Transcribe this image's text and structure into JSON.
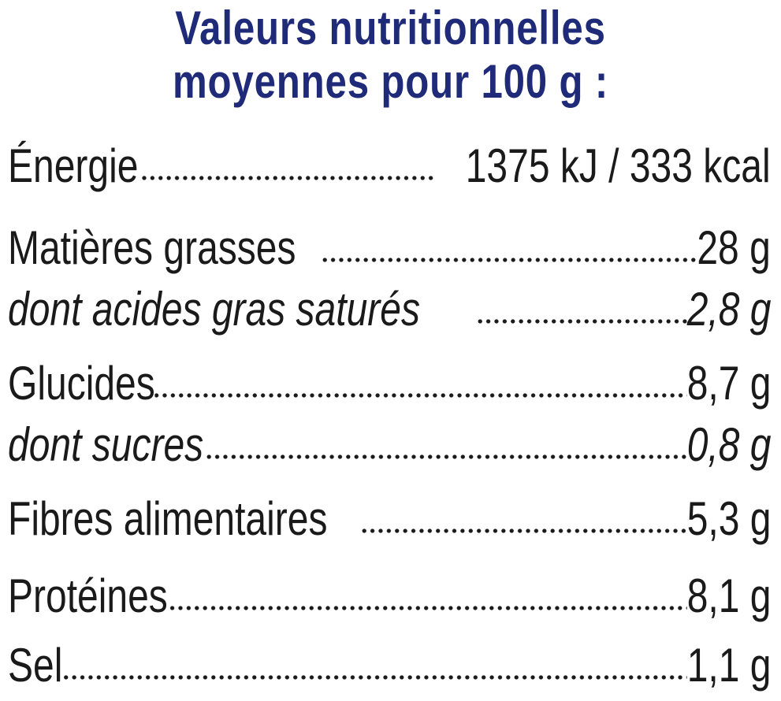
{
  "title": {
    "line1": "Valeurs nutritionnelles",
    "line2": "moyennes pour 100 g :"
  },
  "rows": [
    {
      "label": "Énergie",
      "value": "1375 kJ / 333 kcal"
    },
    {
      "label": "Matières grasses",
      "value": "28 g"
    },
    {
      "label": "dont acides gras saturés",
      "value": "2,8 g"
    },
    {
      "label": "Glucides",
      "value": "8,7 g"
    },
    {
      "label": "dont sucres",
      "value": "0,8 g"
    },
    {
      "label": "Fibres alimentaires",
      "value": "5,3 g"
    },
    {
      "label": "Protéines",
      "value": "8,1 g"
    },
    {
      "label": "Sel",
      "value": "1,1 g"
    }
  ],
  "colors": {
    "title": "#1f2a78",
    "text": "#1a1a1a",
    "background": "#ffffff"
  }
}
